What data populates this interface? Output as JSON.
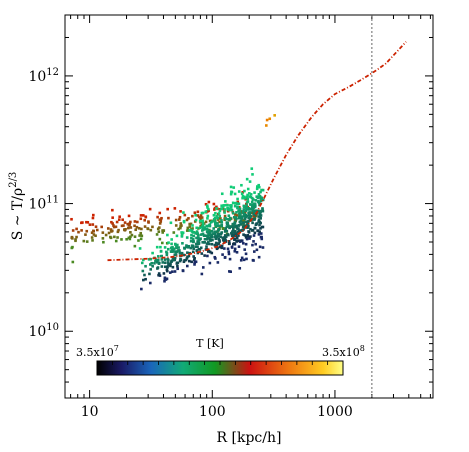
{
  "chart_data": {
    "type": "scatter",
    "xlabel": "R [kpc/h]",
    "ylabel_main": "S ~ T/ρ",
    "ylabel_sup": "2/3",
    "x_scale": "log",
    "y_scale": "log",
    "xlim": [
      6.3,
      520000
    ],
    "ylim": [
      3000000000,
      3000000000000
    ],
    "x_ticks": [
      {
        "value": 10,
        "label": "10"
      },
      {
        "value": 100,
        "label": "100"
      },
      {
        "value": 1000,
        "label": "1000"
      }
    ],
    "y_ticks": [
      {
        "value": 10000000000,
        "base": "10",
        "exp": "10"
      },
      {
        "value": 100000000000,
        "base": "10",
        "exp": "11"
      },
      {
        "value": 1000000000000,
        "base": "10",
        "exp": "12"
      }
    ],
    "vertical_line": {
      "x": 2000,
      "style": "dotted"
    },
    "colorbar": {
      "title": "T [K]",
      "min_label": {
        "mantissa": "3.5x10",
        "exp": "7"
      },
      "max_label": {
        "mantissa": "3.5x10",
        "exp": "8"
      },
      "range": [
        35000000,
        350000000
      ]
    },
    "profile": {
      "color": "#cc2200",
      "points": [
        [
          2000,
          1050000000000
        ],
        [
          2300,
          1150000000000
        ],
        [
          2600,
          1250000000000
        ],
        [
          3000,
          1450000000000
        ],
        [
          3500,
          1700000000000
        ],
        [
          3800,
          1850000000000
        ]
      ],
      "segments": [
        [
          [
            14,
            36000000000
          ],
          [
            20,
            36500000000
          ],
          [
            30,
            37000000000
          ],
          [
            45,
            38000000000
          ],
          [
            60,
            39500000000
          ],
          [
            80,
            42000000000
          ],
          [
            110,
            46000000000
          ],
          [
            140,
            52000000000
          ],
          [
            180,
            62000000000
          ],
          [
            230,
            85000000000
          ],
          [
            270,
            115000000000
          ],
          [
            320,
            160000000000
          ],
          [
            400,
            240000000000
          ],
          [
            500,
            340000000000
          ],
          [
            650,
            480000000000
          ],
          [
            800,
            600000000000
          ],
          [
            1000,
            720000000000
          ],
          [
            1300,
            820000000000
          ],
          [
            1600,
            920000000000
          ],
          [
            2000,
            1050000000000
          ],
          [
            2300,
            1150000000000
          ],
          [
            2600,
            1250000000000
          ],
          [
            3000,
            1450000000000
          ],
          [
            3500,
            1700000000000
          ],
          [
            3800,
            1850000000000
          ]
        ]
      ]
    },
    "clouds": [
      {
        "name": "upper-branch",
        "color_lo": "#4a8a22",
        "color_hi": "#cc2200",
        "x_range": [
          7,
          230
        ],
        "y_center_log": [
          10.75,
          10.93
        ],
        "spread": 0.06,
        "count": 260
      },
      {
        "name": "main-cloud",
        "color_lo": "#112244",
        "color_hi": "#11cc77",
        "x_range": [
          25,
          260
        ],
        "y_center_log": [
          10.45,
          10.95
        ],
        "spread": 0.14,
        "count": 700
      },
      {
        "name": "outliers",
        "color_lo": "#ddaa00",
        "color_hi": "#ee7700",
        "x_range": [
          270,
          330
        ],
        "y_center_log": [
          11.58,
          11.75
        ],
        "spread": 0.04,
        "count": 4
      }
    ]
  }
}
